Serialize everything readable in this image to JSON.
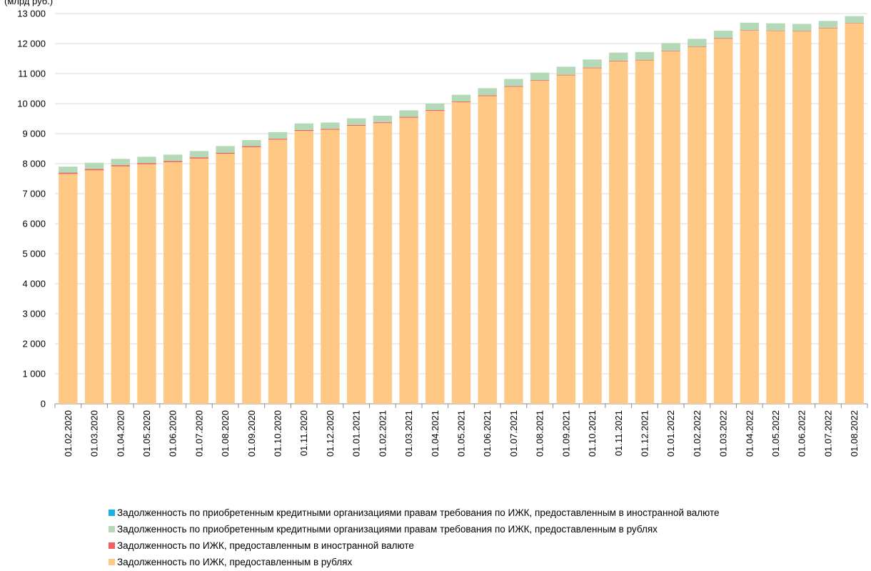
{
  "chart_data": {
    "type": "bar",
    "stacked": true,
    "unit_label": "(млрд руб.)",
    "yticks": [
      "0",
      "1 000",
      "2 000",
      "3 000",
      "4 000",
      "5 000",
      "6 000",
      "7 000",
      "8 000",
      "9 000",
      "10 000",
      "11 000",
      "12 000",
      "13 000"
    ],
    "ylim": [
      0,
      13000
    ],
    "grid": true,
    "legend_position": "bottom",
    "categories": [
      "01.02.2020",
      "01.03.2020",
      "01.04.2020",
      "01.05.2020",
      "01.06.2020",
      "01.07.2020",
      "01.08.2020",
      "01.09.2020",
      "01.10.2020",
      "01.11.2020",
      "01.12.2020",
      "01.01.2021",
      "01.02.2021",
      "01.03.2021",
      "01.04.2021",
      "01.05.2021",
      "01.06.2021",
      "01.07.2021",
      "01.08.2021",
      "01.09.2021",
      "01.10.2021",
      "01.11.2021",
      "01.12.2021",
      "01.01.2022",
      "01.02.2022",
      "01.03.2022",
      "01.04.2022",
      "01.05.2022",
      "01.06.2022",
      "01.07.2022",
      "01.08.2022"
    ],
    "series": [
      {
        "name": "Задолженность по ИЖК, предоставленным в рублях",
        "color": "#FFC985",
        "values": [
          7660,
          7780,
          7910,
          7980,
          8050,
          8170,
          8330,
          8550,
          8800,
          9090,
          9130,
          9260,
          9350,
          9530,
          9760,
          10050,
          10250,
          10560,
          10760,
          10940,
          11180,
          11410,
          11440,
          11740,
          11880,
          12160,
          12430,
          12420,
          12410,
          12510,
          12670
        ]
      },
      {
        "name": "Задолженность по ИЖК, предоставленным в иностранной валюте",
        "color": "#F0605D",
        "values": [
          40,
          40,
          40,
          40,
          40,
          40,
          35,
          35,
          30,
          30,
          30,
          30,
          28,
          28,
          25,
          25,
          25,
          22,
          22,
          20,
          20,
          20,
          20,
          18,
          18,
          18,
          16,
          16,
          16,
          15,
          15
        ]
      },
      {
        "name": "Задолженность по приобретенным кредитными организациями правам требования по ИЖК, предоставленным в рублях",
        "color": "#B3D9B7",
        "values": [
          200,
          210,
          210,
          210,
          210,
          210,
          220,
          200,
          220,
          220,
          210,
          220,
          220,
          220,
          220,
          220,
          240,
          240,
          250,
          270,
          270,
          270,
          260,
          260,
          260,
          250,
          250,
          240,
          230,
          230,
          230
        ]
      },
      {
        "name": "Задолженность по приобретенным кредитными организациями правам требования по ИЖК, предоставленным в иностранной валюте",
        "color": "#1BB1E6",
        "values": [
          0,
          0,
          0,
          0,
          0,
          0,
          0,
          0,
          0,
          0,
          0,
          0,
          0,
          0,
          0,
          0,
          0,
          0,
          0,
          0,
          0,
          0,
          0,
          0,
          0,
          0,
          0,
          0,
          0,
          0,
          0
        ]
      }
    ]
  }
}
